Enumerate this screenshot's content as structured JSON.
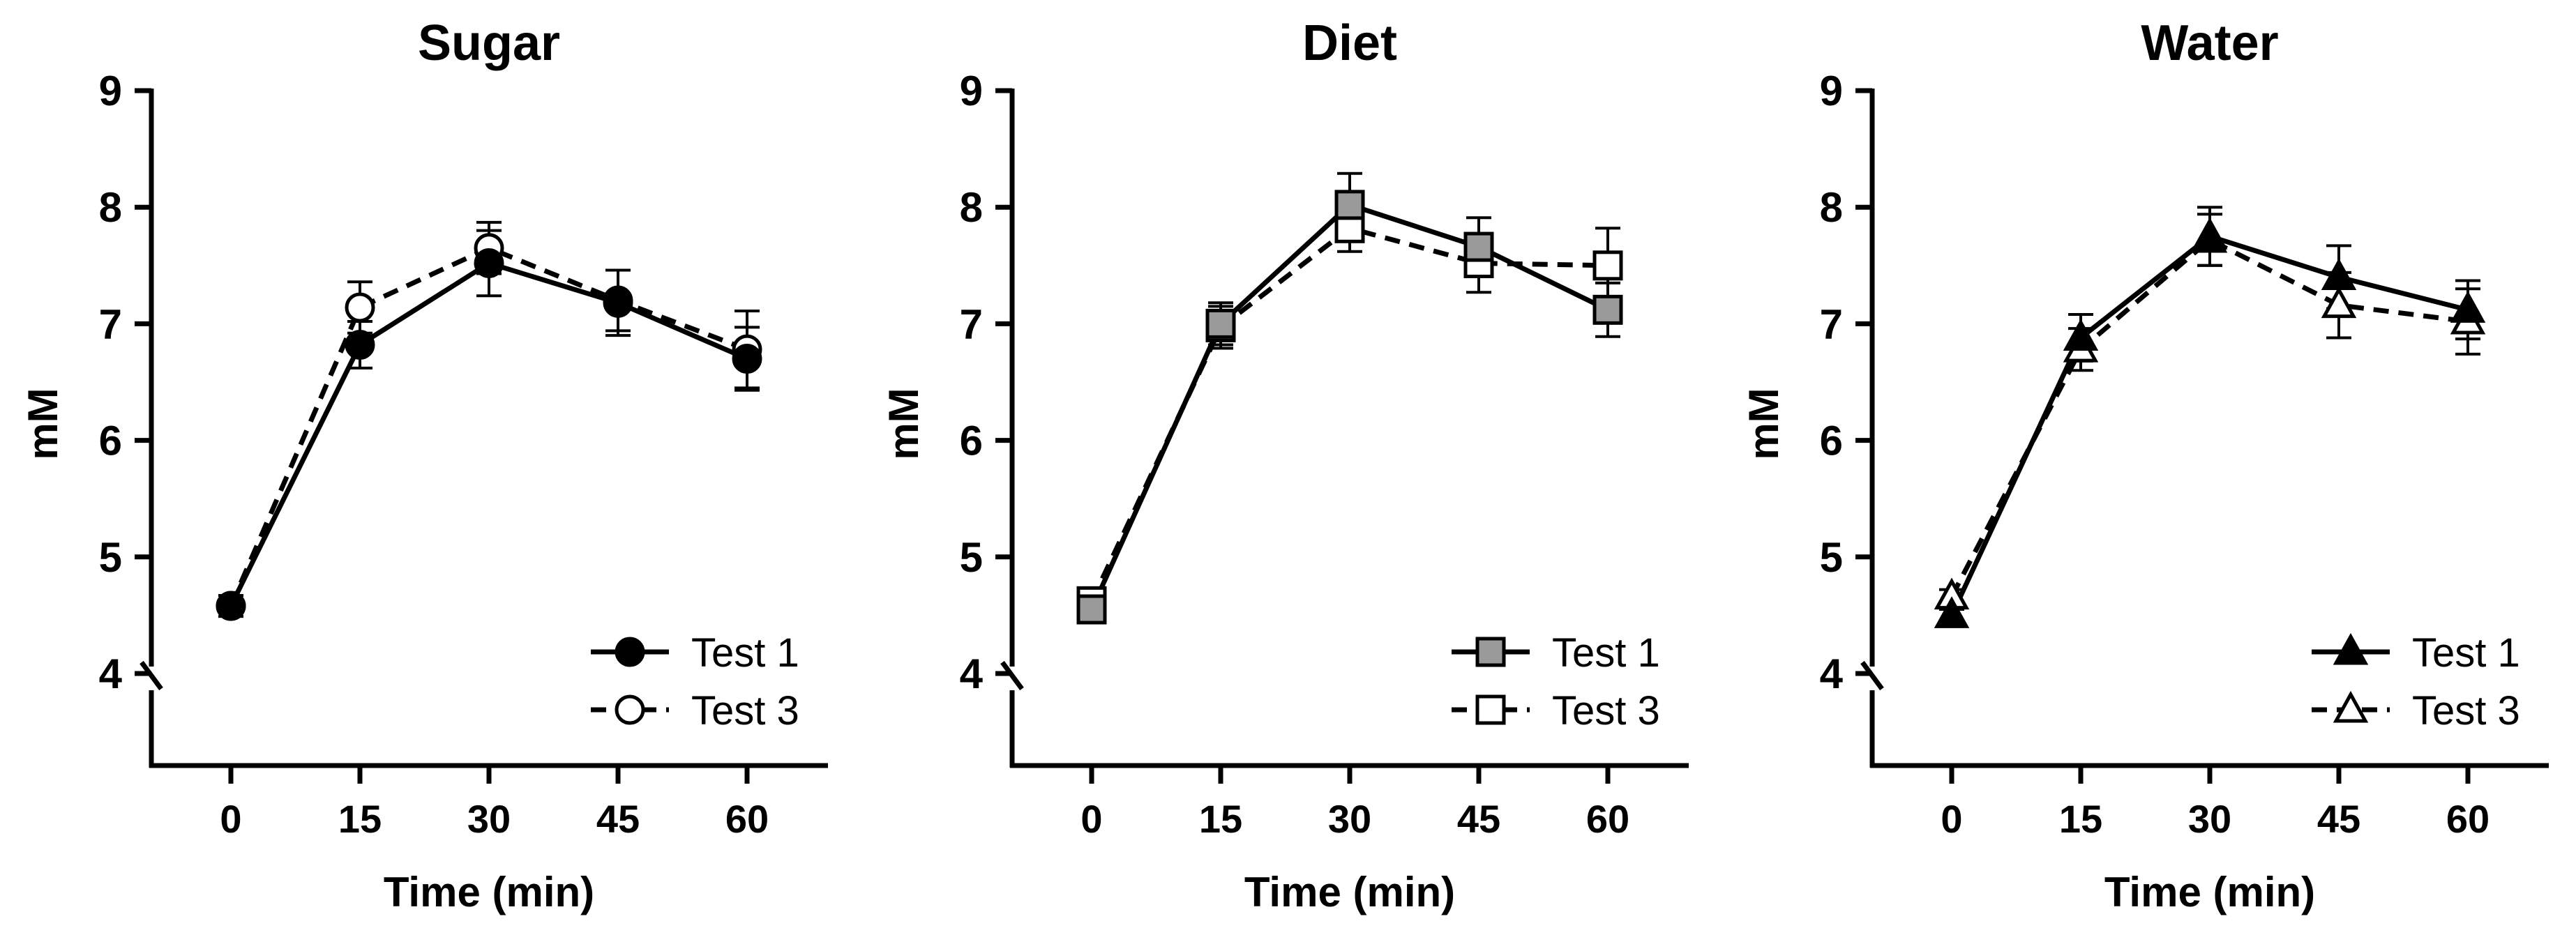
{
  "chart_data": [
    {
      "type": "line",
      "title": "Sugar",
      "xlabel": "Time (min)",
      "ylabel": "mM",
      "x": [
        0,
        15,
        30,
        45,
        60
      ],
      "xticks": [
        "0",
        "15",
        "30",
        "45",
        "60"
      ],
      "yticks": [
        "4",
        "5",
        "6",
        "7",
        "8",
        "9"
      ],
      "ylim": [
        4,
        9
      ],
      "xlim": [
        -10,
        70
      ],
      "marker": "circle",
      "legend_position": "bottom-right",
      "series": [
        {
          "name": "Test 1",
          "style": "solid",
          "fill": "#000000",
          "values": [
            4.58,
            6.82,
            7.52,
            7.18,
            6.7
          ],
          "errors": [
            0.09,
            0.2,
            0.28,
            0.28,
            0.27
          ]
        },
        {
          "name": "Test 3",
          "style": "dashed",
          "fill": "#ffffff",
          "values": [
            4.58,
            7.14,
            7.65,
            7.2,
            6.78
          ],
          "errors": [
            0.06,
            0.22,
            0.22,
            0.26,
            0.33
          ]
        }
      ]
    },
    {
      "type": "line",
      "title": "Diet",
      "xlabel": "Time (min)",
      "ylabel": "mM",
      "x": [
        0,
        15,
        30,
        45,
        60
      ],
      "xticks": [
        "0",
        "15",
        "30",
        "45",
        "60"
      ],
      "yticks": [
        "4",
        "5",
        "6",
        "7",
        "8",
        "9"
      ],
      "ylim": [
        4,
        9
      ],
      "xlim": [
        -10,
        70
      ],
      "marker": "square",
      "legend_position": "bottom-right",
      "series": [
        {
          "name": "Test 1",
          "style": "solid",
          "fill": "#9a9a9a",
          "values": [
            4.55,
            7.0,
            8.02,
            7.66,
            7.12
          ],
          "errors": [
            0.06,
            0.18,
            0.27,
            0.25,
            0.23
          ]
        },
        {
          "name": "Test 3",
          "style": "dashed",
          "fill": "#ffffff",
          "values": [
            4.62,
            6.97,
            7.82,
            7.52,
            7.5
          ],
          "errors": [
            0.06,
            0.18,
            0.2,
            0.25,
            0.32
          ]
        }
      ]
    },
    {
      "type": "line",
      "title": "Water",
      "xlabel": "Time (min)",
      "ylabel": "mM",
      "x": [
        0,
        15,
        30,
        45,
        60
      ],
      "xticks": [
        "0",
        "15",
        "30",
        "45",
        "60"
      ],
      "yticks": [
        "4",
        "5",
        "6",
        "7",
        "8",
        "9"
      ],
      "ylim": [
        4,
        9
      ],
      "xlim": [
        -10,
        70
      ],
      "marker": "triangle",
      "legend_position": "bottom-right",
      "series": [
        {
          "name": "Test 1",
          "style": "solid",
          "fill": "#000000",
          "values": [
            4.5,
            6.88,
            7.75,
            7.4,
            7.12
          ],
          "errors": [
            0.05,
            0.2,
            0.25,
            0.27,
            0.25
          ]
        },
        {
          "name": "Test 3",
          "style": "dashed",
          "fill": "#ffffff",
          "values": [
            4.66,
            6.78,
            7.72,
            7.16,
            7.02
          ],
          "errors": [
            0.06,
            0.18,
            0.22,
            0.28,
            0.28
          ]
        }
      ]
    }
  ]
}
